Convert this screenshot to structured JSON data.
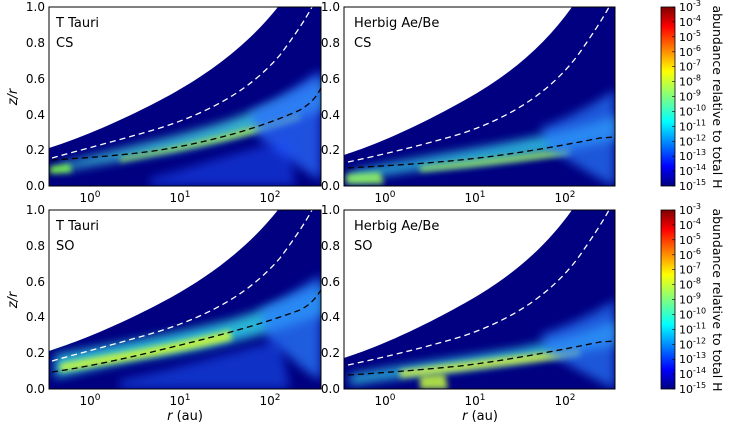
{
  "figure": {
    "xlabel_var": "r",
    "xlabel_unit": "(au)",
    "ylabel": "z/r",
    "colorbar_label": "abundance relative to total H",
    "colorbar_ticks": [
      "10-3",
      "10-4",
      "10-5",
      "10-6",
      "10-7",
      "10-8",
      "10-9",
      "10-10",
      "10-11",
      "10-12",
      "10-13",
      "10-14",
      "10-15"
    ],
    "colors": {
      "background": "#000080",
      "white_contour": "#ffffff",
      "black_contour": "#000000"
    }
  },
  "chart_data": [
    {
      "type": "heatmap",
      "panel_labels": [
        "T Tauri",
        "CS"
      ],
      "x_scale": "log",
      "x_range_au": [
        0.5,
        500
      ],
      "x_tick_labels": [
        "10^0",
        "10^1",
        "10^2"
      ],
      "y_range": [
        0.0,
        1.0
      ],
      "y_tick_labels": [
        "0.0",
        "0.2",
        "0.4",
        "0.6",
        "0.8",
        "1.0"
      ],
      "color_scale": "log10 abundance",
      "color_range": [
        -15,
        -3
      ],
      "dashed_contours": [
        {
          "color": "white",
          "r_au": [
            0.5,
            1,
            10,
            100,
            300,
            500
          ],
          "z_over_r": [
            0.14,
            0.22,
            0.38,
            0.68,
            0.91,
            1.0
          ]
        },
        {
          "color": "black",
          "r_au": [
            0.5,
            1,
            10,
            100,
            300,
            500
          ],
          "z_over_r": [
            0.14,
            0.17,
            0.23,
            0.33,
            0.46,
            0.56
          ]
        }
      ]
    },
    {
      "type": "heatmap",
      "panel_labels": [
        "Herbig Ae/Be",
        "CS"
      ],
      "x_scale": "log",
      "x_range_au": [
        0.5,
        500
      ],
      "x_tick_labels": [
        "10^0",
        "10^1",
        "10^2"
      ],
      "y_range": [
        0.0,
        1.0
      ],
      "y_tick_labels": [
        "0.0",
        "0.2",
        "0.4",
        "0.6",
        "0.8",
        "1.0"
      ],
      "color_scale": "log10 abundance",
      "color_range": [
        -15,
        -3
      ],
      "dashed_contours": [
        {
          "color": "white",
          "r_au": [
            0.5,
            1,
            10,
            100,
            300,
            500
          ],
          "z_over_r": [
            0.12,
            0.18,
            0.33,
            0.6,
            0.85,
            0.97
          ]
        },
        {
          "color": "black",
          "r_au": [
            0.5,
            1,
            10,
            100,
            300,
            500
          ],
          "z_over_r": [
            0.1,
            0.13,
            0.16,
            0.22,
            0.27,
            0.27
          ]
        }
      ]
    },
    {
      "type": "heatmap",
      "panel_labels": [
        "T Tauri",
        "SO"
      ],
      "x_scale": "log",
      "x_range_au": [
        0.5,
        500
      ],
      "x_tick_labels": [
        "10^0",
        "10^1",
        "10^2"
      ],
      "y_range": [
        0.0,
        1.0
      ],
      "y_tick_labels": [
        "0.0",
        "0.2",
        "0.4",
        "0.6",
        "0.8",
        "1.0"
      ],
      "color_scale": "log10 abundance",
      "color_range": [
        -15,
        -3
      ],
      "dashed_contours": [
        {
          "color": "white",
          "r_au": [
            0.5,
            1,
            10,
            100,
            300,
            500
          ],
          "z_over_r": [
            0.14,
            0.22,
            0.38,
            0.68,
            0.91,
            1.0
          ]
        },
        {
          "color": "black",
          "r_au": [
            0.5,
            1,
            10,
            100,
            300,
            500
          ],
          "z_over_r": [
            0.1,
            0.14,
            0.22,
            0.33,
            0.46,
            0.56
          ]
        }
      ]
    },
    {
      "type": "heatmap",
      "panel_labels": [
        "Herbig Ae/Be",
        "SO"
      ],
      "x_scale": "log",
      "x_range_au": [
        0.5,
        500
      ],
      "x_tick_labels": [
        "10^0",
        "10^1",
        "10^2"
      ],
      "y_range": [
        0.0,
        1.0
      ],
      "y_tick_labels": [
        "0.0",
        "0.2",
        "0.4",
        "0.6",
        "0.8",
        "1.0"
      ],
      "color_scale": "log10 abundance",
      "color_range": [
        -15,
        -3
      ],
      "dashed_contours": [
        {
          "color": "white",
          "r_au": [
            0.5,
            1,
            10,
            100,
            300,
            500
          ],
          "z_over_r": [
            0.12,
            0.18,
            0.33,
            0.6,
            0.85,
            0.97
          ]
        },
        {
          "color": "black",
          "r_au": [
            0.5,
            1,
            10,
            100,
            300,
            500
          ],
          "z_over_r": [
            0.08,
            0.1,
            0.14,
            0.22,
            0.26,
            0.26
          ]
        }
      ]
    }
  ]
}
